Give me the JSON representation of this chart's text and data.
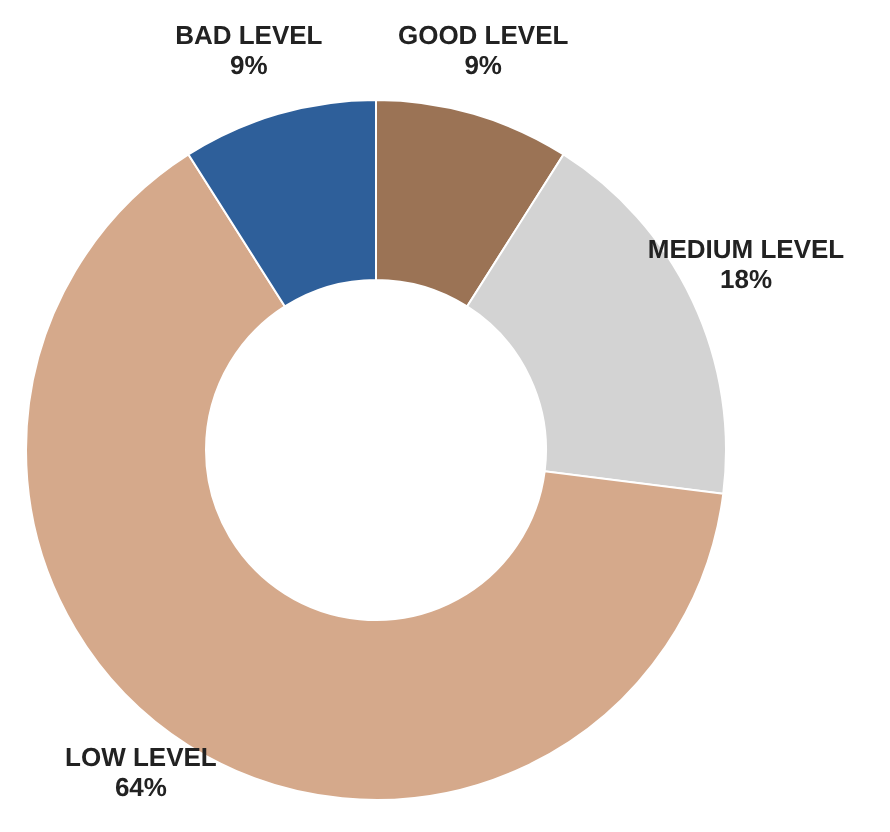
{
  "chart_data": {
    "type": "donut",
    "categories": [
      "GOOD LEVEL",
      "MEDIUM LEVEL",
      "LOW LEVEL",
      "BAD LEVEL"
    ],
    "values": [
      9,
      18,
      64,
      9
    ],
    "value_labels": [
      "9%",
      "18%",
      "64%",
      "9%"
    ],
    "colors": [
      "#9b7355",
      "#d3d3d3",
      "#d5a98b",
      "#2e5f9a"
    ],
    "legend": false
  }
}
